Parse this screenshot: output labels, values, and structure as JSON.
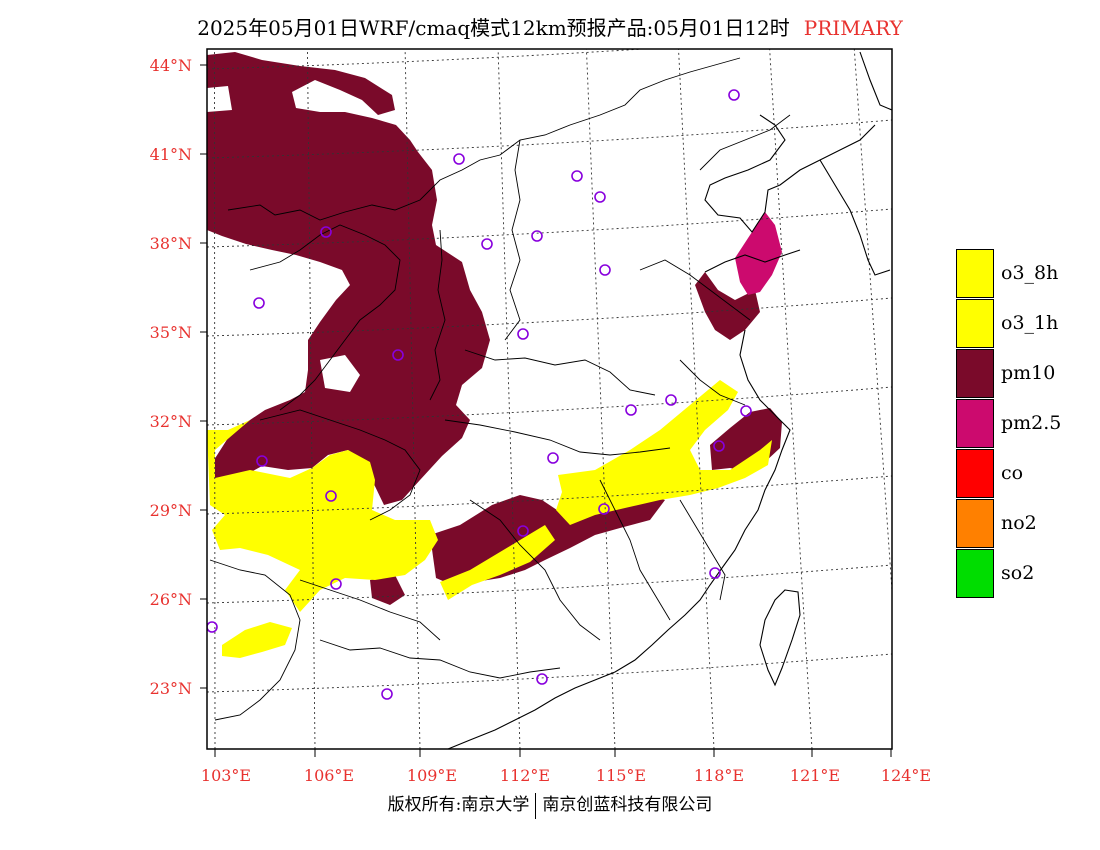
{
  "title": {
    "main": "2025年05月01日WRF/cmaq模式12km预报产品:05月01日12时",
    "highlight": "PRIMARY"
  },
  "map": {
    "lat_labels": [
      "44°N",
      "41°N",
      "38°N",
      "35°N",
      "32°N",
      "29°N",
      "26°N",
      "23°N"
    ],
    "lon_labels": [
      "103°E",
      "106°E",
      "109°E",
      "112°E",
      "115°E",
      "118°E",
      "121°E",
      "124°E"
    ],
    "colors": {
      "pm10": "#7a0a2a",
      "pm2_5": "#cc0a6e",
      "o3": "#ffff00",
      "station": "#8800dd"
    }
  },
  "legend": [
    {
      "label": "o3_8h",
      "color": "#ffff00"
    },
    {
      "label": "o3_1h",
      "color": "#ffff00"
    },
    {
      "label": "pm10",
      "color": "#7a0a2a"
    },
    {
      "label": "pm2.5",
      "color": "#cc0a6e"
    },
    {
      "label": "co",
      "color": "#ff0000"
    },
    {
      "label": "no2",
      "color": "#ff8000"
    },
    {
      "label": "so2",
      "color": "#00dd00"
    }
  ],
  "footer": {
    "left": "版权所有:南京大学",
    "right": "南京创蓝科技有限公司"
  }
}
